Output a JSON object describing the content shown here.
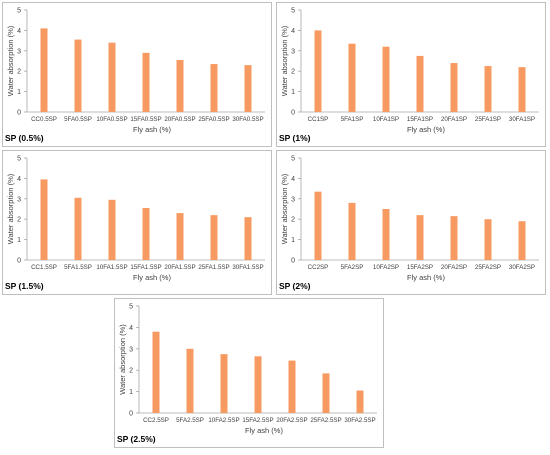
{
  "style": {
    "bar_color": "#f79a62",
    "axis_color": "#a6a6a6"
  },
  "chart_data": [
    {
      "type": "bar",
      "panel_label": "SP (0.5%)",
      "xlabel": "Fly ash (%)",
      "ylabel": "Water absorption (%)",
      "ylim": [
        0,
        5
      ],
      "yticks": [
        0,
        1,
        2,
        3,
        4,
        5
      ],
      "categories": [
        "CC0.5SP",
        "5FA0.5SP",
        "10FA0.5SP",
        "15FA0.5SP",
        "20FA0.5SP",
        "25FA0.5SP",
        "30FA0.5SP"
      ],
      "values": [
        4.1,
        3.55,
        3.4,
        2.9,
        2.55,
        2.35,
        2.3
      ]
    },
    {
      "type": "bar",
      "panel_label": "SP (1%)",
      "xlabel": "Fly ash (%)",
      "ylabel": "Water absorption (%)",
      "ylim": [
        0,
        5
      ],
      "yticks": [
        0,
        1,
        2,
        3,
        4,
        5
      ],
      "categories": [
        "CC1SP",
        "5FA1SP",
        "10FA1SP",
        "15FA1SP",
        "20FA1SP",
        "25FA1SP",
        "30FA1SP"
      ],
      "values": [
        4.0,
        3.35,
        3.2,
        2.75,
        2.4,
        2.25,
        2.2
      ]
    },
    {
      "type": "bar",
      "panel_label": "SP (1.5%)",
      "xlabel": "Fly ash (%)",
      "ylabel": "Water absorption (%)",
      "ylim": [
        0,
        5
      ],
      "yticks": [
        0,
        1,
        2,
        3,
        4,
        5
      ],
      "categories": [
        "CC1.5SP",
        "5FA1.5SP",
        "10FA1.5SP",
        "15FA1.5SP",
        "20FA1.5SP",
        "25FA1.5SP",
        "30FA1.5SP"
      ],
      "values": [
        3.95,
        3.05,
        2.95,
        2.55,
        2.3,
        2.2,
        2.1
      ]
    },
    {
      "type": "bar",
      "panel_label": "SP (2%)",
      "xlabel": "Fly ash (%)",
      "ylabel": "Water absorption (%)",
      "ylim": [
        0,
        5
      ],
      "yticks": [
        0,
        1,
        2,
        3,
        4,
        5
      ],
      "categories": [
        "CC2SP",
        "5FA2SP",
        "10FA2SP",
        "15FA2SP",
        "20FA2SP",
        "25FA2SP",
        "30FA2SP"
      ],
      "values": [
        3.35,
        2.8,
        2.5,
        2.2,
        2.15,
        2.0,
        1.9
      ]
    },
    {
      "type": "bar",
      "panel_label": "SP (2.5%)",
      "xlabel": "Fly ash (%)",
      "ylabel": "Water absorption (%)",
      "ylim": [
        0,
        5
      ],
      "yticks": [
        0,
        1,
        2,
        3,
        4,
        5
      ],
      "categories": [
        "CC2.5SP",
        "5FA2.5SP",
        "10FA2.5SP",
        "15FA2.5SP",
        "20FA2.5SP",
        "25FA2.5SP",
        "30FA2.5SP"
      ],
      "values": [
        3.8,
        3.0,
        2.75,
        2.65,
        2.45,
        1.85,
        1.05
      ]
    }
  ]
}
